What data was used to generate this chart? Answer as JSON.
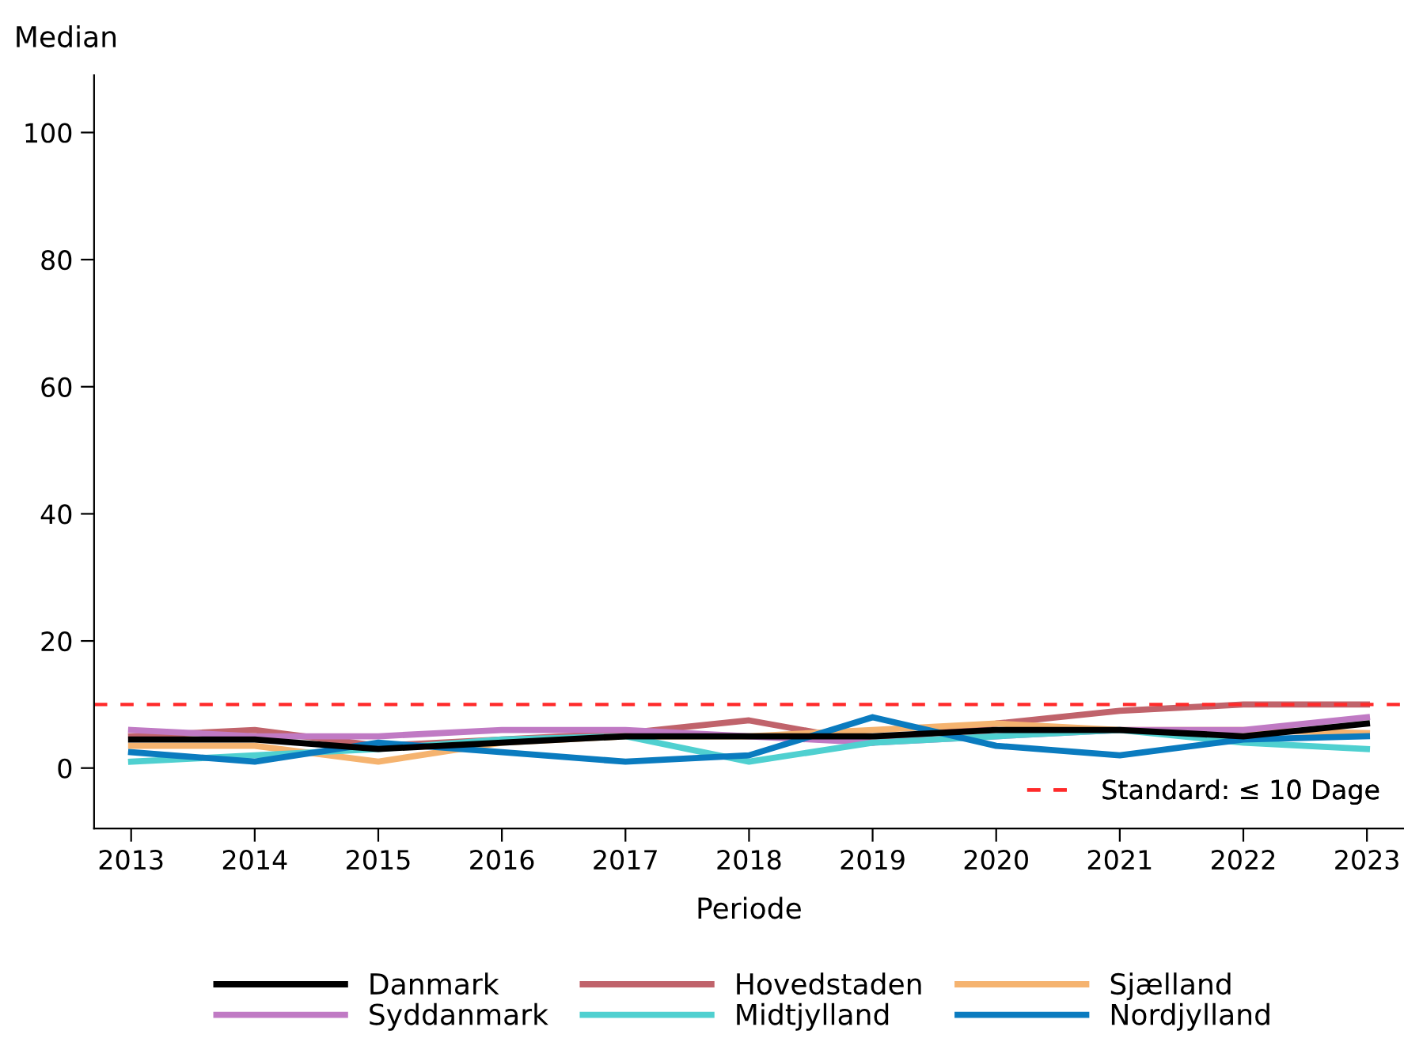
{
  "chart_data": {
    "type": "line",
    "ylabel": "Median",
    "xlabel": "Periode",
    "x": [
      2013,
      2014,
      2015,
      2016,
      2017,
      2018,
      2019,
      2020,
      2021,
      2022,
      2023
    ],
    "xlim": [
      2012.7,
      2023.3
    ],
    "xticks": [
      2013,
      2014,
      2015,
      2016,
      2017,
      2018,
      2019,
      2020,
      2021,
      2022,
      2023
    ],
    "ylim": [
      -9.5,
      109
    ],
    "yticks": [
      0,
      20,
      40,
      60,
      80,
      100
    ],
    "grid": false,
    "legend": "bottom",
    "marker": "none",
    "line_style": "solid",
    "series": [
      {
        "name": "Danmark",
        "color": "#000000",
        "values": [
          4.5,
          4.5,
          3,
          4,
          5,
          5,
          5,
          6,
          6,
          5,
          7
        ]
      },
      {
        "name": "Hovedstaden",
        "color": "#c0636b",
        "values": [
          5,
          6,
          3.5,
          4.5,
          5.5,
          7.5,
          4,
          7,
          9,
          10,
          10
        ]
      },
      {
        "name": "Sjælland",
        "color": "#f5b36f",
        "values": [
          3.5,
          3.5,
          1,
          4,
          5,
          5,
          6,
          7,
          6,
          6,
          5.5
        ]
      },
      {
        "name": "Syddanmark",
        "color": "#c07ac4",
        "values": [
          6,
          5,
          5,
          6,
          6,
          5,
          4,
          5,
          6,
          6,
          8
        ]
      },
      {
        "name": "Midtjylland",
        "color": "#4fd0d0",
        "values": [
          1,
          2,
          3,
          4.5,
          5,
          1,
          4,
          5,
          6,
          4,
          3
        ]
      },
      {
        "name": "Nordjylland",
        "color": "#0a7bbf",
        "values": [
          2.5,
          1,
          4,
          2.5,
          1,
          2,
          8,
          3.5,
          2,
          4.5,
          5
        ]
      }
    ],
    "ref_lines": [
      {
        "axis": "y",
        "value": 10,
        "label": "Standard: ≤ 10 Dage",
        "color": "#ff2a2a",
        "line_style": "dashed"
      }
    ]
  }
}
